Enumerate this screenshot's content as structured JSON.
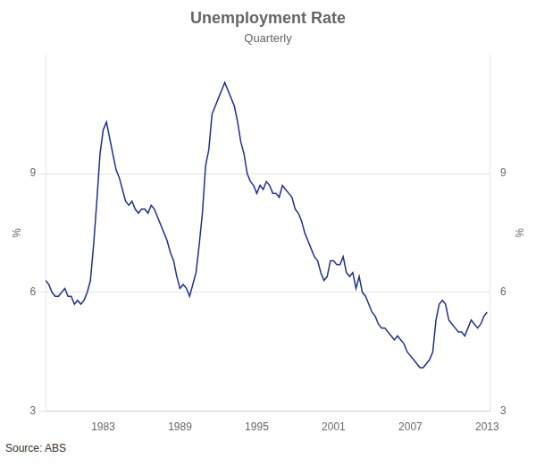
{
  "chart_data": {
    "type": "line",
    "title": "Unemployment Rate",
    "subtitle": "Quarterly",
    "ylabel": "%",
    "y2label": "%",
    "source": "Source: ABS",
    "xlim": [
      1978.5,
      2013.25
    ],
    "xticks": [
      1983,
      1989,
      1995,
      2001,
      2007,
      2013
    ],
    "ylim": [
      3,
      12
    ],
    "yticks": [
      3,
      6,
      9
    ],
    "y2lim": [
      3,
      12
    ],
    "y2ticks": [
      3,
      6,
      9
    ],
    "grid": "y",
    "color": "#1f2f8c",
    "x": [
      1978.5,
      1978.75,
      1979.0,
      1979.25,
      1979.5,
      1979.75,
      1980.0,
      1980.25,
      1980.5,
      1980.75,
      1981.0,
      1981.25,
      1981.5,
      1981.75,
      1982.0,
      1982.25,
      1982.5,
      1982.75,
      1983.0,
      1983.25,
      1983.5,
      1983.75,
      1984.0,
      1984.25,
      1984.5,
      1984.75,
      1985.0,
      1985.25,
      1985.5,
      1985.75,
      1986.0,
      1986.25,
      1986.5,
      1986.75,
      1987.0,
      1987.25,
      1987.5,
      1987.75,
      1988.0,
      1988.25,
      1988.5,
      1988.75,
      1989.0,
      1989.25,
      1989.5,
      1989.75,
      1990.0,
      1990.25,
      1990.5,
      1990.75,
      1991.0,
      1991.25,
      1991.5,
      1991.75,
      1992.0,
      1992.25,
      1992.5,
      1992.75,
      1993.0,
      1993.25,
      1993.5,
      1993.75,
      1994.0,
      1994.25,
      1994.5,
      1994.75,
      1995.0,
      1995.25,
      1995.5,
      1995.75,
      1996.0,
      1996.25,
      1996.5,
      1996.75,
      1997.0,
      1997.25,
      1997.5,
      1997.75,
      1998.0,
      1998.25,
      1998.5,
      1998.75,
      1999.0,
      1999.25,
      1999.5,
      1999.75,
      2000.0,
      2000.25,
      2000.5,
      2000.75,
      2001.0,
      2001.25,
      2001.5,
      2001.75,
      2002.0,
      2002.25,
      2002.5,
      2002.75,
      2003.0,
      2003.25,
      2003.5,
      2003.75,
      2004.0,
      2004.25,
      2004.5,
      2004.75,
      2005.0,
      2005.25,
      2005.5,
      2005.75,
      2006.0,
      2006.25,
      2006.5,
      2006.75,
      2007.0,
      2007.25,
      2007.5,
      2007.75,
      2008.0,
      2008.25,
      2008.5,
      2008.75,
      2009.0,
      2009.25,
      2009.5,
      2009.75,
      2010.0,
      2010.25,
      2010.5,
      2010.75,
      2011.0,
      2011.25,
      2011.5,
      2011.75,
      2012.0,
      2012.25,
      2012.5,
      2012.75,
      2013.0
    ],
    "values": [
      6.3,
      6.2,
      6.0,
      5.9,
      5.9,
      6.0,
      6.1,
      5.9,
      5.9,
      5.7,
      5.8,
      5.7,
      5.8,
      6.0,
      6.3,
      7.2,
      8.3,
      9.5,
      10.1,
      10.3,
      9.9,
      9.5,
      9.1,
      8.9,
      8.6,
      8.3,
      8.2,
      8.3,
      8.1,
      8.0,
      8.1,
      8.1,
      8.0,
      8.2,
      8.1,
      7.9,
      7.7,
      7.5,
      7.3,
      7.0,
      6.8,
      6.4,
      6.1,
      6.2,
      6.1,
      5.9,
      6.2,
      6.5,
      7.2,
      8.0,
      9.2,
      9.6,
      10.5,
      10.7,
      10.9,
      11.1,
      11.3,
      11.1,
      10.9,
      10.7,
      10.3,
      9.8,
      9.5,
      9.0,
      8.8,
      8.7,
      8.5,
      8.7,
      8.6,
      8.8,
      8.7,
      8.5,
      8.5,
      8.4,
      8.7,
      8.6,
      8.5,
      8.4,
      8.1,
      8.0,
      7.8,
      7.5,
      7.3,
      7.1,
      6.9,
      6.8,
      6.5,
      6.3,
      6.4,
      6.8,
      6.8,
      6.7,
      6.7,
      6.9,
      6.5,
      6.4,
      6.5,
      6.1,
      6.4,
      6.0,
      5.9,
      5.7,
      5.5,
      5.4,
      5.2,
      5.1,
      5.1,
      5.0,
      4.9,
      4.8,
      4.9,
      4.8,
      4.7,
      4.5,
      4.4,
      4.3,
      4.2,
      4.1,
      4.1,
      4.2,
      4.3,
      4.5,
      5.3,
      5.7,
      5.8,
      5.7,
      5.3,
      5.2,
      5.1,
      5.0,
      5.0,
      4.9,
      5.1,
      5.3,
      5.2,
      5.1,
      5.2,
      5.4,
      5.5
    ]
  }
}
